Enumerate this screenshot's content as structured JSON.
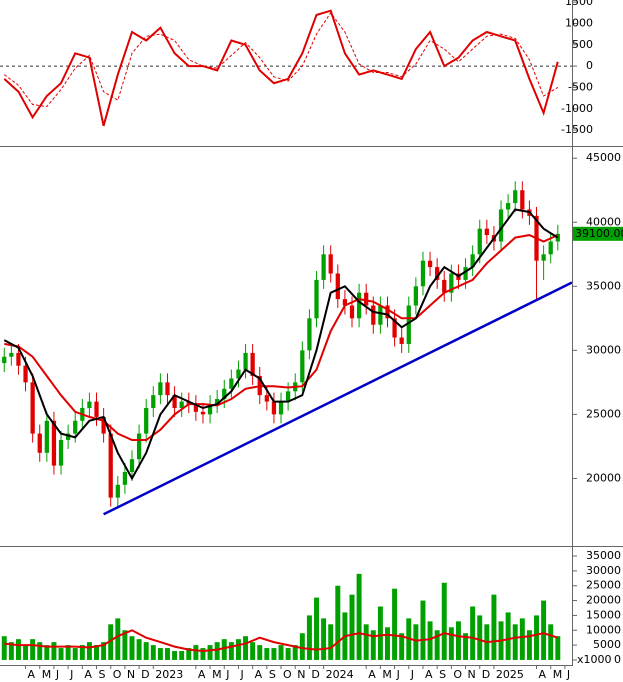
{
  "chart_data": [
    {
      "type": "line",
      "xlim": [
        1.2,
        41.5
      ],
      "ylim": [
        -1850,
        1550
      ],
      "yticks": [
        -1500,
        -1000,
        -500,
        0,
        500,
        1000,
        1500
      ],
      "reference_line": 0,
      "x": [
        1.5,
        2.5,
        3.5,
        4.5,
        5.5,
        6.5,
        7.5,
        8.5,
        9.5,
        10.5,
        11.5,
        12.5,
        13.5,
        14.5,
        15.5,
        16.5,
        17.5,
        18.5,
        19.5,
        20.5,
        21.5,
        22.5,
        23.5,
        24.5,
        25.5,
        26.5,
        27.5,
        28.5,
        29.5,
        30.5,
        31.5,
        32.5,
        33.5,
        34.5,
        35.5,
        36.5,
        37.5,
        38.5,
        39.5,
        40.5
      ],
      "series": [
        {
          "color": "#e00000",
          "dash": true,
          "values": [
            -200,
            -450,
            -900,
            -950,
            -550,
            -50,
            250,
            -600,
            -800,
            300,
            700,
            750,
            600,
            150,
            0,
            -50,
            250,
            550,
            200,
            -250,
            -350,
            0,
            750,
            1250,
            800,
            50,
            -150,
            -150,
            -250,
            50,
            600,
            400,
            100,
            400,
            700,
            750,
            650,
            150,
            -700,
            -500
          ]
        },
        {
          "color": "#e00000",
          "dash": false,
          "values": [
            -300,
            -600,
            -1200,
            -700,
            -400,
            300,
            200,
            -1400,
            -200,
            800,
            600,
            900,
            300,
            0,
            0,
            -100,
            600,
            500,
            -100,
            -400,
            -300,
            300,
            1200,
            1300,
            300,
            -200,
            -100,
            -200,
            -300,
            400,
            800,
            0,
            200,
            600,
            800,
            700,
            600,
            -300,
            -1100,
            100
          ]
        }
      ]
    },
    {
      "type": "candlestick",
      "xlim": [
        1.2,
        41.5
      ],
      "ylim": [
        14800,
        45800
      ],
      "yticks": [
        20000,
        25000,
        30000,
        35000,
        40000,
        45000
      ],
      "up_color": "#00a000",
      "down_color": "#e00000",
      "x": [
        1.5,
        2,
        2.5,
        3,
        3.5,
        4,
        4.5,
        5,
        5.5,
        6,
        6.5,
        7,
        7.5,
        8,
        8.5,
        9,
        9.5,
        10,
        10.5,
        11,
        11.5,
        12,
        12.5,
        13,
        13.5,
        14,
        14.5,
        15,
        15.5,
        16,
        16.5,
        17,
        17.5,
        18,
        18.5,
        19,
        19.5,
        20,
        20.5,
        21,
        21.5,
        22,
        22.5,
        23,
        23.5,
        24,
        24.5,
        25,
        25.5,
        26,
        26.5,
        27,
        27.5,
        28,
        28.5,
        29,
        29.5,
        30,
        30.5,
        31,
        31.5,
        32,
        32.5,
        33,
        33.5,
        34,
        34.5,
        35,
        35.5,
        36,
        36.5,
        37,
        37.5,
        38,
        38.5,
        39,
        39.5,
        40,
        40.5
      ],
      "open": [
        29000,
        29500,
        29800,
        28800,
        27500,
        23500,
        22000,
        24500,
        21000,
        23000,
        23500,
        24500,
        25500,
        26000,
        24800,
        23500,
        18500,
        19500,
        20500,
        21500,
        23500,
        25500,
        26500,
        27500,
        26500,
        25500,
        26000,
        25800,
        25200,
        25000,
        25800,
        26200,
        27000,
        27800,
        28500,
        29800,
        28000,
        26500,
        26000,
        25000,
        26000,
        26800,
        27500,
        30000,
        32500,
        35500,
        37500,
        36000,
        34000,
        33500,
        32500,
        34500,
        33500,
        32000,
        33500,
        32500,
        31000,
        30500,
        33500,
        35000,
        37000,
        36500,
        35500,
        34500,
        36000,
        35500,
        36500,
        37500,
        39500,
        39000,
        38500,
        41000,
        41500,
        42500,
        41000,
        40500,
        37000,
        37500,
        38500
      ],
      "high": [
        30200,
        30500,
        30500,
        29500,
        28200,
        24200,
        25200,
        25200,
        23700,
        24200,
        25200,
        26200,
        26700,
        26700,
        25500,
        24200,
        20200,
        21200,
        22200,
        24200,
        26200,
        27200,
        28200,
        28200,
        27200,
        26700,
        26700,
        26500,
        25900,
        26500,
        26900,
        27700,
        28500,
        29200,
        30500,
        30500,
        28700,
        27200,
        26700,
        26700,
        27500,
        28200,
        30700,
        33200,
        36200,
        38200,
        38200,
        36700,
        34700,
        34200,
        35200,
        35200,
        34200,
        34200,
        34200,
        33200,
        31700,
        34200,
        35700,
        37700,
        37700,
        37200,
        36200,
        36700,
        36700,
        37200,
        38200,
        40200,
        40200,
        39700,
        41700,
        42200,
        43200,
        43200,
        41700,
        41200,
        38200,
        39200,
        39800
      ],
      "low": [
        28300,
        28800,
        28100,
        26800,
        22800,
        21300,
        21300,
        20300,
        20300,
        22300,
        22800,
        23800,
        24800,
        24100,
        22800,
        17800,
        17800,
        18800,
        19800,
        20800,
        22800,
        24800,
        25800,
        25800,
        24800,
        24800,
        25100,
        24500,
        24300,
        24300,
        25100,
        25500,
        26300,
        27100,
        27800,
        27300,
        25800,
        25300,
        24300,
        24300,
        25300,
        26100,
        26800,
        29300,
        31800,
        34800,
        35300,
        33300,
        32800,
        31800,
        31800,
        32800,
        31300,
        31300,
        31800,
        30300,
        29800,
        29800,
        32800,
        34300,
        35800,
        34800,
        33800,
        33800,
        34800,
        34800,
        35800,
        36800,
        38300,
        37800,
        37800,
        40300,
        40800,
        40300,
        39800,
        34000,
        35500,
        36800,
        37800
      ],
      "close": [
        29500,
        29800,
        28800,
        27500,
        23500,
        22000,
        24500,
        21000,
        23000,
        23500,
        24500,
        25500,
        26000,
        24800,
        23500,
        18500,
        19500,
        20500,
        21500,
        23500,
        25500,
        26500,
        27500,
        26500,
        25500,
        26000,
        25800,
        25200,
        25000,
        25800,
        26200,
        27000,
        27800,
        28500,
        29800,
        28000,
        26500,
        26000,
        25000,
        26000,
        26800,
        27500,
        30000,
        32500,
        35500,
        37500,
        36000,
        34000,
        33500,
        32500,
        34500,
        33500,
        32000,
        33500,
        32500,
        31000,
        30500,
        33500,
        35000,
        37000,
        36500,
        35500,
        34500,
        36000,
        35500,
        36500,
        37500,
        39500,
        39000,
        38500,
        41000,
        41500,
        42500,
        41000,
        40500,
        37000,
        37500,
        38500,
        39100
      ],
      "overlays": {
        "x": [
          1.5,
          2.5,
          3.5,
          4.5,
          5.5,
          6.5,
          7.5,
          8.5,
          9.5,
          10.5,
          11.5,
          12.5,
          13.5,
          14.5,
          15.5,
          16.5,
          17.5,
          18.5,
          19.5,
          20.5,
          21.5,
          22.5,
          23.5,
          24.5,
          25.5,
          26.5,
          27.5,
          28.5,
          29.5,
          30.5,
          31.5,
          32.5,
          33.5,
          34.5,
          35.5,
          36.5,
          37.5,
          38.5,
          39.5,
          40.5
        ],
        "series": [
          {
            "color": "#e00000",
            "values": [
              30500,
              30300,
              29500,
              28000,
              26500,
              25200,
              24800,
              24500,
              23500,
              23000,
              23000,
              23800,
              25000,
              25800,
              25800,
              25700,
              26200,
              27000,
              27200,
              27200,
              27100,
              27200,
              28500,
              31500,
              33500,
              34000,
              33800,
              33200,
              32500,
              32500,
              33500,
              34500,
              35000,
              35500,
              36800,
              37800,
              38800,
              39000,
              38500,
              39000
            ]
          },
          {
            "color": "#000000",
            "values": [
              30800,
              30200,
              28000,
              25000,
              23500,
              23200,
              24500,
              24800,
              22000,
              20000,
              22000,
              25000,
              26500,
              26000,
              25500,
              25800,
              26800,
              28500,
              27800,
              26000,
              26000,
              26500,
              30000,
              34500,
              35000,
              33800,
              33000,
              32800,
              31800,
              32500,
              35000,
              36500,
              35800,
              36500,
              38000,
              39500,
              41000,
              40800,
              39500,
              38800
            ]
          }
        ]
      },
      "trendline": {
        "color": "#0000c8",
        "x": [
          8.5,
          41.5
        ],
        "values": [
          17200,
          35300
        ]
      },
      "last_price": {
        "value": 39100,
        "label": "39100.00"
      }
    },
    {
      "type": "bar",
      "xlim": [
        1.2,
        41.5
      ],
      "ylim": [
        -1700,
        37700
      ],
      "yticks": [
        0,
        5000,
        10000,
        15000,
        20000,
        25000,
        30000,
        35000
      ],
      "y_unit": "x1000",
      "color": "#00a000",
      "x": [
        1.5,
        2,
        2.5,
        3,
        3.5,
        4,
        4.5,
        5,
        5.5,
        6,
        6.5,
        7,
        7.5,
        8,
        8.5,
        9,
        9.5,
        10,
        10.5,
        11,
        11.5,
        12,
        12.5,
        13,
        13.5,
        14,
        14.5,
        15,
        15.5,
        16,
        16.5,
        17,
        17.5,
        18,
        18.5,
        19,
        19.5,
        20,
        20.5,
        21,
        21.5,
        22,
        22.5,
        23,
        23.5,
        24,
        24.5,
        25,
        25.5,
        26,
        26.5,
        27,
        27.5,
        28,
        28.5,
        29,
        29.5,
        30,
        30.5,
        31,
        31.5,
        32,
        32.5,
        33,
        33.5,
        34,
        34.5,
        35,
        35.5,
        36,
        36.5,
        37,
        37.5,
        38,
        38.5,
        39,
        39.5,
        40,
        40.5
      ],
      "values": [
        8000,
        6000,
        7000,
        5000,
        7000,
        6000,
        5000,
        6000,
        4000,
        5000,
        4000,
        5000,
        6000,
        5000,
        6000,
        12000,
        14000,
        10000,
        8000,
        7000,
        6000,
        5000,
        4000,
        4000,
        3000,
        3000,
        4000,
        5000,
        4000,
        5000,
        6000,
        7000,
        6000,
        7000,
        8000,
        6000,
        5000,
        4000,
        4000,
        5000,
        4000,
        5000,
        9000,
        15000,
        21000,
        14000,
        12000,
        25000,
        16000,
        22000,
        29000,
        12000,
        10000,
        18000,
        11000,
        24000,
        9000,
        14000,
        12000,
        20000,
        13000,
        10000,
        26000,
        11000,
        13000,
        9000,
        18000,
        15000,
        12000,
        22000,
        13000,
        16000,
        12000,
        14000,
        10000,
        15000,
        20000,
        12000,
        8000
      ],
      "overlays": {
        "x": [
          1.5,
          2.5,
          3.5,
          4.5,
          5.5,
          6.5,
          7.5,
          8.5,
          9.5,
          10.5,
          11.5,
          12.5,
          13.5,
          14.5,
          15.5,
          16.5,
          17.5,
          18.5,
          19.5,
          20.5,
          21.5,
          22.5,
          23.5,
          24.5,
          25.5,
          26.5,
          27.5,
          28.5,
          29.5,
          30.5,
          31.5,
          32.5,
          33.5,
          34.5,
          35.5,
          36.5,
          37.5,
          38.5,
          39.5,
          40.5
        ],
        "series": [
          {
            "color": "#e00000",
            "values": [
              5500,
              5000,
              5000,
              4500,
              4500,
              4500,
              4200,
              5000,
              8000,
              10000,
              7500,
              6000,
              4500,
              3500,
              3000,
              3500,
              4500,
              5500,
              7500,
              6000,
              5000,
              4000,
              3500,
              4000,
              8000,
              9000,
              8000,
              8500,
              8000,
              6500,
              7000,
              9000,
              8000,
              7500,
              6000,
              6500,
              7500,
              8000,
              9000,
              7500
            ]
          }
        ]
      },
      "xticks": [
        {
          "value": 3,
          "label": "A"
        },
        {
          "value": 4,
          "label": "M"
        },
        {
          "value": 5,
          "label": "J"
        },
        {
          "value": 6,
          "label": "J"
        },
        {
          "value": 7,
          "label": "A"
        },
        {
          "value": 8,
          "label": "S"
        },
        {
          "value": 9,
          "label": "O"
        },
        {
          "value": 10,
          "label": "N"
        },
        {
          "value": 11,
          "label": "D"
        },
        {
          "value": 12,
          "label": "2023"
        },
        {
          "value": 15,
          "label": "A"
        },
        {
          "value": 16,
          "label": "M"
        },
        {
          "value": 17,
          "label": "J"
        },
        {
          "value": 18,
          "label": "J"
        },
        {
          "value": 19,
          "label": "A"
        },
        {
          "value": 20,
          "label": "S"
        },
        {
          "value": 21,
          "label": "O"
        },
        {
          "value": 22,
          "label": "N"
        },
        {
          "value": 23,
          "label": "D"
        },
        {
          "value": 24,
          "label": "2024"
        },
        {
          "value": 27,
          "label": "A"
        },
        {
          "value": 28,
          "label": "M"
        },
        {
          "value": 29,
          "label": "J"
        },
        {
          "value": 30,
          "label": "J"
        },
        {
          "value": 31,
          "label": "A"
        },
        {
          "value": 32,
          "label": "S"
        },
        {
          "value": 33,
          "label": "O"
        },
        {
          "value": 34,
          "label": "N"
        },
        {
          "value": 35,
          "label": "D"
        },
        {
          "value": 36,
          "label": "2025"
        },
        {
          "value": 39,
          "label": "A"
        },
        {
          "value": 40,
          "label": "M"
        },
        {
          "value": 41,
          "label": "J"
        }
      ]
    }
  ]
}
